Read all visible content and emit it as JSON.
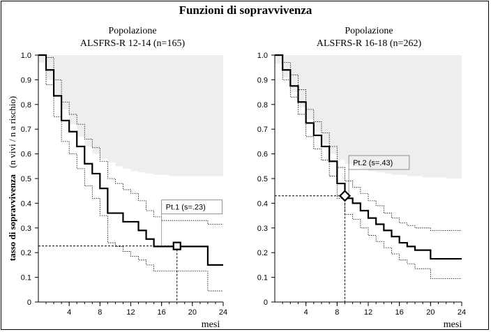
{
  "figure": {
    "title": "Funzioni di sopravvivenza",
    "ylabel_bold": "tasso di sopravvivenza",
    "ylabel_light": "(n vivi / n a rischio)",
    "xlabel": "mesi"
  },
  "chart_data": [
    {
      "type": "line",
      "subtitle_line1": "Popolazione",
      "subtitle_line2": "ALSFRS-R 12-14 (n=165)",
      "xlim": [
        0,
        24
      ],
      "ylim": [
        0,
        1
      ],
      "xticks": [
        4,
        8,
        12,
        16,
        20,
        24
      ],
      "yticks": [
        0,
        0.1,
        0.2,
        0.3,
        0.4,
        0.5,
        0.6,
        0.7,
        0.8,
        0.9,
        1.0
      ],
      "ytick_labels": [
        "0",
        "0.1",
        "0.2",
        "0.3",
        "0.4",
        "0.5",
        "0.6",
        "0.7",
        "0.8",
        "0.9",
        "1.0"
      ],
      "series": [
        {
          "role": "survival",
          "x": [
            0,
            1,
            2,
            3,
            4,
            5,
            6,
            7,
            8,
            9,
            10,
            11,
            12,
            13,
            14,
            15,
            16,
            22,
            24
          ],
          "y": [
            1.0,
            0.94,
            0.835,
            0.735,
            0.69,
            0.63,
            0.56,
            0.52,
            0.46,
            0.36,
            0.36,
            0.325,
            0.325,
            0.29,
            0.255,
            0.225,
            0.225,
            0.15,
            0.15
          ]
        },
        {
          "role": "upper_ci",
          "x": [
            0,
            1,
            2,
            3,
            4,
            5,
            6,
            7,
            8,
            9,
            10,
            11,
            12,
            13,
            14,
            15,
            16,
            22,
            24
          ],
          "y": [
            1.0,
            0.99,
            0.9,
            0.81,
            0.76,
            0.72,
            0.66,
            0.625,
            0.57,
            0.5,
            0.48,
            0.455,
            0.44,
            0.41,
            0.37,
            0.345,
            0.33,
            0.315,
            0.315
          ]
        },
        {
          "role": "lower_ci",
          "x": [
            0,
            1,
            2,
            3,
            4,
            5,
            6,
            7,
            8,
            9,
            10,
            11,
            12,
            13,
            14,
            15,
            16,
            22,
            24
          ],
          "y": [
            1.0,
            0.88,
            0.75,
            0.65,
            0.6,
            0.54,
            0.47,
            0.42,
            0.35,
            0.24,
            0.225,
            0.205,
            0.185,
            0.17,
            0.15,
            0.125,
            0.125,
            0.045,
            0.045
          ]
        }
      ],
      "shade_upper": 1.0,
      "shade_lower": {
        "x": [
          0,
          1,
          2,
          3,
          4,
          5,
          6,
          7,
          8,
          9,
          10,
          11,
          12,
          13,
          14,
          15,
          16,
          17,
          18,
          19,
          20,
          21,
          22,
          23,
          24
        ],
        "y": [
          1.0,
          0.97,
          0.9,
          0.84,
          0.78,
          0.72,
          0.67,
          0.63,
          0.6,
          0.58,
          0.565,
          0.55,
          0.54,
          0.53,
          0.525,
          0.52,
          0.515,
          0.515,
          0.51,
          0.51,
          0.51,
          0.51,
          0.51,
          0.51,
          0.51
        ]
      },
      "point": {
        "label": "Pt.1 (s=.23)",
        "x": 18,
        "y": 0.227,
        "marker": "square",
        "box_x": 16,
        "box_y": 0.385
      },
      "accent": "#000000",
      "shade_color": "#eeeeee"
    },
    {
      "type": "line",
      "subtitle_line1": "Popolazione",
      "subtitle_line2": "ALSFRS-R 16-18 (n=262)",
      "xlim": [
        0,
        24
      ],
      "ylim": [
        0,
        1
      ],
      "xticks": [
        4,
        8,
        12,
        16,
        20,
        24
      ],
      "yticks": [
        0,
        0.1,
        0.2,
        0.3,
        0.4,
        0.5,
        0.6,
        0.7,
        0.8,
        0.9,
        1.0
      ],
      "ytick_labels": [
        "0",
        "0.1",
        "0.2",
        "0.3",
        "0.4",
        "0.5",
        "0.6",
        "0.7",
        "0.8",
        "0.9",
        "1.0"
      ],
      "series": [
        {
          "role": "survival",
          "x": [
            0,
            1,
            2,
            3,
            4,
            5,
            6,
            7,
            8,
            9,
            10,
            11,
            12,
            13,
            14,
            15,
            16,
            17,
            18,
            20,
            24
          ],
          "y": [
            1.0,
            0.94,
            0.875,
            0.81,
            0.725,
            0.675,
            0.63,
            0.57,
            0.48,
            0.42,
            0.4,
            0.37,
            0.34,
            0.315,
            0.29,
            0.265,
            0.24,
            0.225,
            0.21,
            0.175,
            0.175
          ]
        },
        {
          "role": "upper_ci",
          "x": [
            0,
            1,
            2,
            3,
            4,
            5,
            6,
            7,
            8,
            9,
            10,
            11,
            12,
            13,
            14,
            15,
            16,
            17,
            18,
            20,
            24
          ],
          "y": [
            1.0,
            0.97,
            0.92,
            0.86,
            0.78,
            0.73,
            0.685,
            0.63,
            0.545,
            0.49,
            0.465,
            0.44,
            0.41,
            0.39,
            0.36,
            0.34,
            0.32,
            0.31,
            0.3,
            0.29,
            0.29
          ]
        },
        {
          "role": "lower_ci",
          "x": [
            0,
            1,
            2,
            3,
            4,
            5,
            6,
            7,
            8,
            9,
            10,
            11,
            12,
            13,
            14,
            15,
            16,
            17,
            18,
            20,
            24
          ],
          "y": [
            1.0,
            0.9,
            0.83,
            0.76,
            0.67,
            0.62,
            0.575,
            0.51,
            0.42,
            0.355,
            0.335,
            0.3,
            0.27,
            0.245,
            0.22,
            0.195,
            0.17,
            0.155,
            0.135,
            0.095,
            0.095
          ]
        }
      ],
      "shade_upper": 1.0,
      "shade_lower": {
        "x": [
          0,
          1,
          2,
          3,
          4,
          5,
          6,
          7,
          8,
          9,
          10,
          11,
          12,
          13,
          14,
          15,
          16,
          17,
          18,
          19,
          20,
          21,
          22,
          23,
          24
        ],
        "y": [
          1.0,
          0.965,
          0.91,
          0.85,
          0.79,
          0.74,
          0.69,
          0.64,
          0.6,
          0.575,
          0.56,
          0.55,
          0.54,
          0.53,
          0.525,
          0.52,
          0.515,
          0.515,
          0.51,
          0.51,
          0.505,
          0.505,
          0.505,
          0.5,
          0.5
        ]
      },
      "point": {
        "label": "Pt.2 (s=.43)",
        "x": 9,
        "y": 0.43,
        "marker": "diamond",
        "box_x": 9.5,
        "box_y": 0.565
      },
      "accent": "#000000",
      "shade_color": "#eeeeee"
    }
  ]
}
